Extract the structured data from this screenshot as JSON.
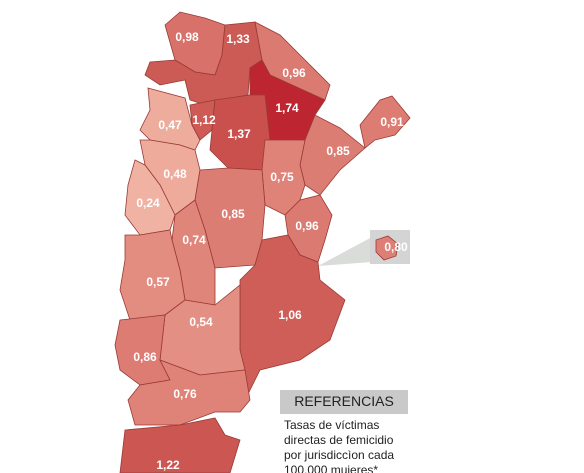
{
  "map": {
    "regions": [
      {
        "label": "0,98",
        "color": "#d8716a"
      },
      {
        "label": "1,33",
        "color": "#cc5a55"
      },
      {
        "label": "0,96",
        "color": "#da7a70"
      },
      {
        "label": "1,74",
        "color": "#bd2630"
      },
      {
        "label": "0,91",
        "color": "#dc7c72"
      },
      {
        "label": "0,47",
        "color": "#eeac9d"
      },
      {
        "label": "1,12",
        "color": "#cd5a55"
      },
      {
        "label": "1,37",
        "color": "#c9504d"
      },
      {
        "label": "0,85",
        "color": "#dc7d73"
      },
      {
        "label": "0,48",
        "color": "#eeab9b"
      },
      {
        "label": "0,75",
        "color": "#df8378"
      },
      {
        "label": "0,24",
        "color": "#f0b2a3"
      },
      {
        "label": "0,85",
        "color": "#dc7d73"
      },
      {
        "label": "0,96",
        "color": "#da7a70"
      },
      {
        "label": "0,80",
        "color": "#dd7f75"
      },
      {
        "label": "0,74",
        "color": "#e0857a"
      },
      {
        "label": "0,57",
        "color": "#e38c80"
      },
      {
        "label": "1,06",
        "color": "#cf5e58"
      },
      {
        "label": "0,54",
        "color": "#e48f83"
      },
      {
        "label": "0,86",
        "color": "#dc7c72"
      },
      {
        "label": "0,76",
        "color": "#df8277"
      },
      {
        "label": "1,22",
        "color": "#cb5652"
      }
    ]
  },
  "legend": {
    "title": "REFERENCIAS",
    "lines": [
      "Tasas de víctimas",
      "directas de femicidio",
      "por jurisdiccìon cada",
      "100.000 mujeres*"
    ]
  }
}
